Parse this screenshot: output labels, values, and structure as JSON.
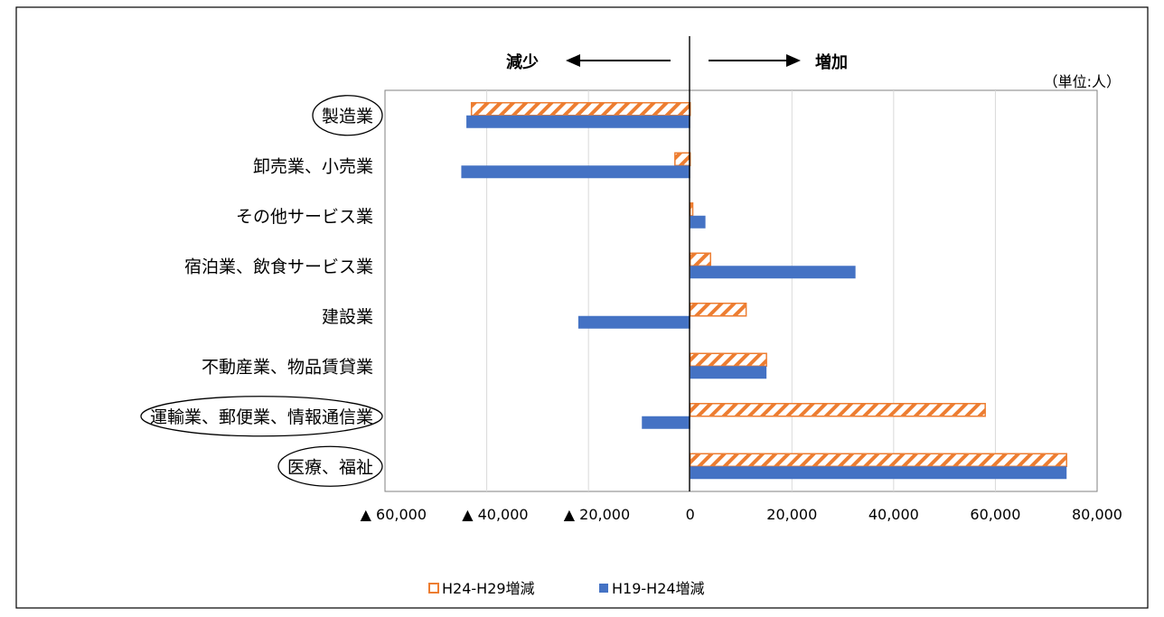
{
  "chart_data": {
    "type": "bar",
    "orientation": "horizontal",
    "unit_note": "（単位:人）",
    "direction_labels": {
      "decrease": "減少",
      "increase": "増加"
    },
    "categories": [
      "製造業",
      "卸売業、小売業",
      "その他サービス業",
      "宿泊業、飲食サービス業",
      "建設業",
      "不動産業、物品賃貸業",
      "運輸業、郵便業、情報通信業",
      "医療、福祉"
    ],
    "circled_categories": [
      "製造業",
      "運輸業、郵便業、情報通信業",
      "医療、福祉"
    ],
    "series": [
      {
        "name": "H24-H29増減",
        "color": "#ED7D31",
        "pattern": "diagonal-hatch",
        "values": [
          -43000,
          -3000,
          500,
          4000,
          11000,
          15000,
          58000,
          74000
        ]
      },
      {
        "name": "H19-H24増減",
        "color": "#4472C4",
        "pattern": "solid",
        "values": [
          -44000,
          -45000,
          3000,
          32500,
          -22000,
          15000,
          -9500,
          74000
        ]
      }
    ],
    "xlim": [
      -60000,
      80000
    ],
    "x_ticks": [
      -60000,
      -40000,
      -20000,
      0,
      20000,
      40000,
      60000,
      80000
    ],
    "x_tick_labels": [
      "▲ 60,000",
      "▲ 40,000",
      "▲ 20,000",
      "0",
      "20,000",
      "40,000",
      "60,000",
      "80,000"
    ],
    "grid": true,
    "legend_position": "bottom",
    "legend_entries": [
      "H24-H29増減",
      "H19-H24増減"
    ]
  }
}
